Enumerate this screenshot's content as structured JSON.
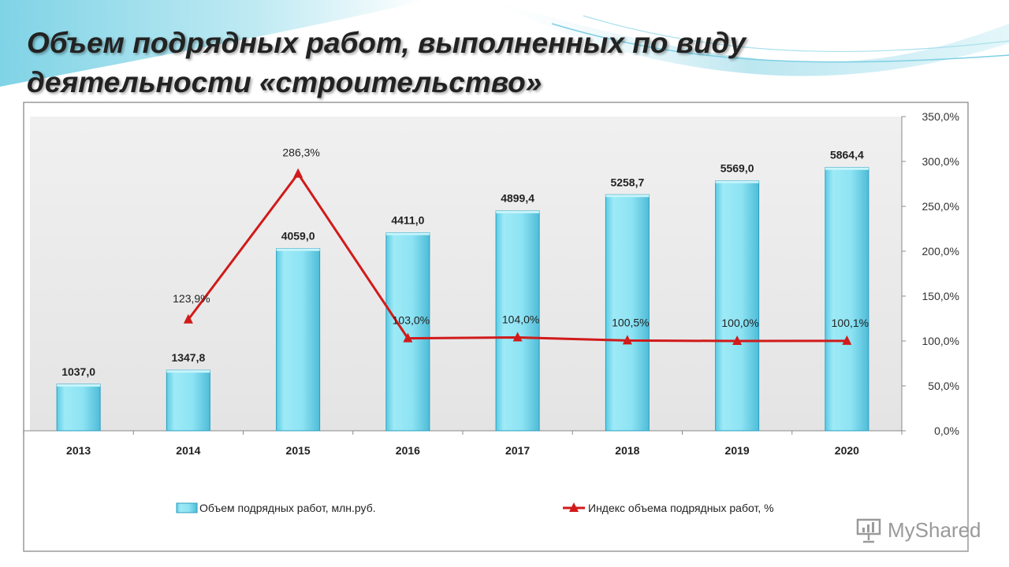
{
  "slide": {
    "title": "Объем подрядных работ, выполненных по виду деятельности «строительство»"
  },
  "colors": {
    "bar_fill": "#8fe3f2",
    "bar_edge": "#2a9fbf",
    "line": "#d11a1a",
    "plot_bg": "#e9e9e9",
    "title_text": "#222222"
  },
  "chart_data": {
    "type": "bar",
    "categories": [
      "2013",
      "2014",
      "2015",
      "2016",
      "2017",
      "2018",
      "2019",
      "2020"
    ],
    "series": [
      {
        "name": "Объем подрядных работ, млн.руб.",
        "type": "bar",
        "values": [
          1037.0,
          1347.8,
          4059.0,
          4411.0,
          4899.4,
          5258.7,
          5569.0,
          5864.4
        ],
        "labels": [
          "1037,0",
          "1347,8",
          "4059,0",
          "4411,0",
          "4899,4",
          "5258,7",
          "5569,0",
          "5864,4"
        ]
      },
      {
        "name": "Индекс объема подрядных работ, %",
        "type": "line",
        "marker": "triangle",
        "values": [
          null,
          123.9,
          286.3,
          103.0,
          104.0,
          100.5,
          100.0,
          100.1
        ],
        "labels": [
          "",
          "123,9%",
          "286,3%",
          "103,0%",
          "104,0%",
          "100,5%",
          "100,0%",
          "100,1%"
        ]
      }
    ],
    "y_right": {
      "ticks": [
        "0,0%",
        "50,0%",
        "100,0%",
        "150,0%",
        "200,0%",
        "250,0%",
        "300,0%",
        "350,0%"
      ],
      "range": [
        0,
        350
      ]
    },
    "bar_value_range": [
      0,
      7000
    ],
    "legend_position": "bottom",
    "grid": false
  },
  "watermark": {
    "text": "MyShared"
  }
}
